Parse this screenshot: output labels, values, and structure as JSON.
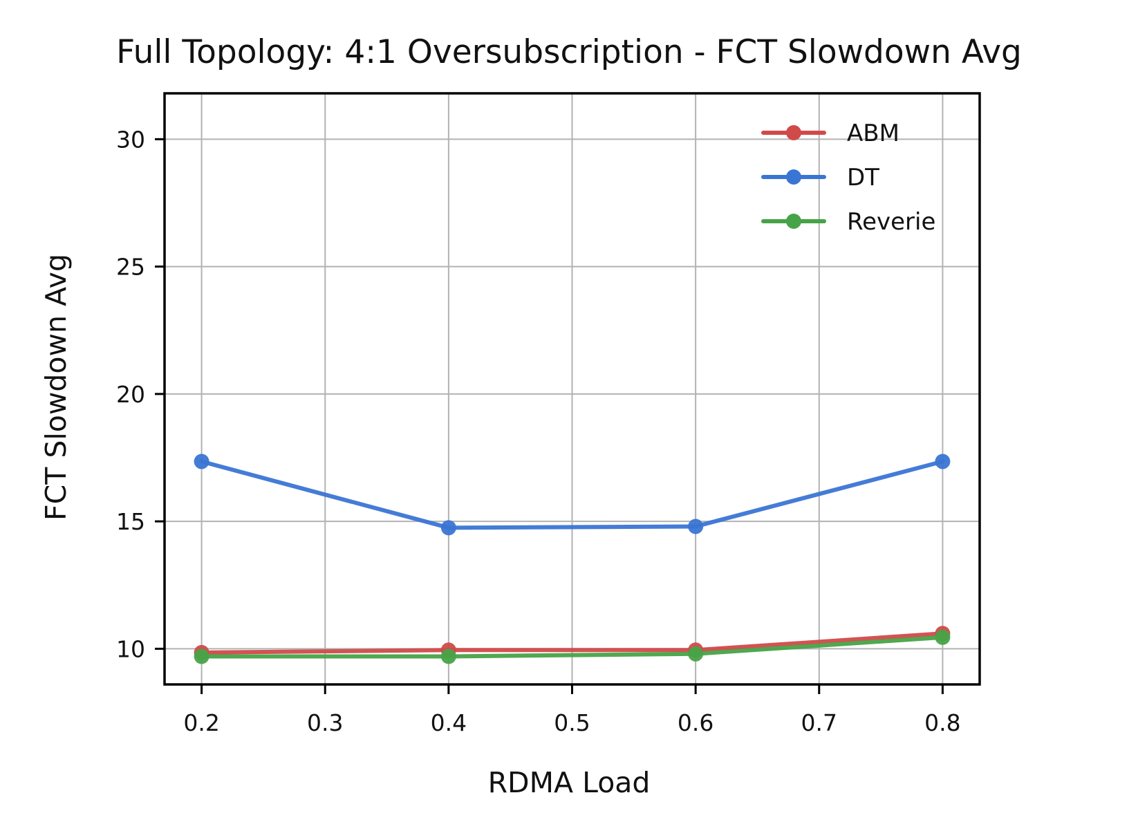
{
  "chart_data": {
    "type": "line",
    "title": "Full Topology: 4:1 Oversubscription - FCT Slowdown Avg",
    "xlabel": "RDMA Load",
    "ylabel": "FCT Slowdown Avg",
    "x": [
      0.2,
      0.4,
      0.6,
      0.8
    ],
    "xlim": [
      0.17,
      0.83
    ],
    "ylim": [
      8.6,
      31.8
    ],
    "xticks": [
      0.2,
      0.3,
      0.4,
      0.5,
      0.6,
      0.7,
      0.8
    ],
    "xtick_labels": [
      "0.2",
      "0.3",
      "0.4",
      "0.5",
      "0.6",
      "0.7",
      "0.8"
    ],
    "yticks": [
      10,
      15,
      20,
      25,
      30
    ],
    "ytick_labels": [
      "10",
      "15",
      "20",
      "25",
      "30"
    ],
    "grid": true,
    "legend_position": "top-right",
    "series": [
      {
        "name": "ABM",
        "color": "#d04a4a",
        "values": [
          9.85,
          9.95,
          9.95,
          10.6
        ]
      },
      {
        "name": "DT",
        "color": "#3a75d4",
        "values": [
          17.35,
          14.75,
          14.8,
          17.35
        ]
      },
      {
        "name": "Reverie",
        "color": "#47a347",
        "values": [
          9.7,
          9.7,
          9.8,
          10.45
        ]
      }
    ]
  }
}
